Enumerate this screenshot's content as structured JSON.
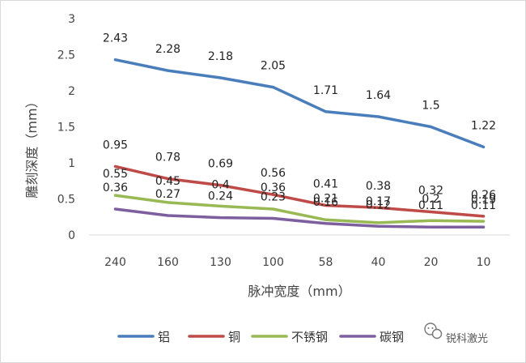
{
  "chart_data": {
    "type": "line",
    "xlabel": "脉冲宽度（mm）",
    "ylabel": "雕刻深度（mm）",
    "categories": [
      "240",
      "160",
      "130",
      "100",
      "58",
      "40",
      "20",
      "10"
    ],
    "ylim": [
      0,
      3
    ],
    "yticks": [
      "0",
      "0.5",
      "1",
      "1.5",
      "2",
      "2.5",
      "3"
    ],
    "grid": false,
    "legend_position": "bottom",
    "series": [
      {
        "name": "铝",
        "color": "#4a7ebb",
        "values": [
          2.43,
          2.28,
          2.18,
          2.05,
          1.71,
          1.64,
          1.5,
          1.22
        ]
      },
      {
        "name": "铜",
        "color": "#be4b48",
        "values": [
          0.95,
          0.78,
          0.69,
          0.56,
          0.41,
          0.38,
          0.32,
          0.26
        ]
      },
      {
        "name": "不锈钢",
        "color": "#98b954",
        "values": [
          0.55,
          0.45,
          0.4,
          0.36,
          0.21,
          0.17,
          0.2,
          0.19
        ]
      },
      {
        "name": "碳钢",
        "color": "#7d5fa0",
        "values": [
          0.36,
          0.27,
          0.24,
          0.23,
          0.16,
          0.12,
          0.11,
          0.11
        ]
      }
    ]
  },
  "watermark": {
    "icon": "wechat-icon",
    "text": "锐科激光"
  }
}
